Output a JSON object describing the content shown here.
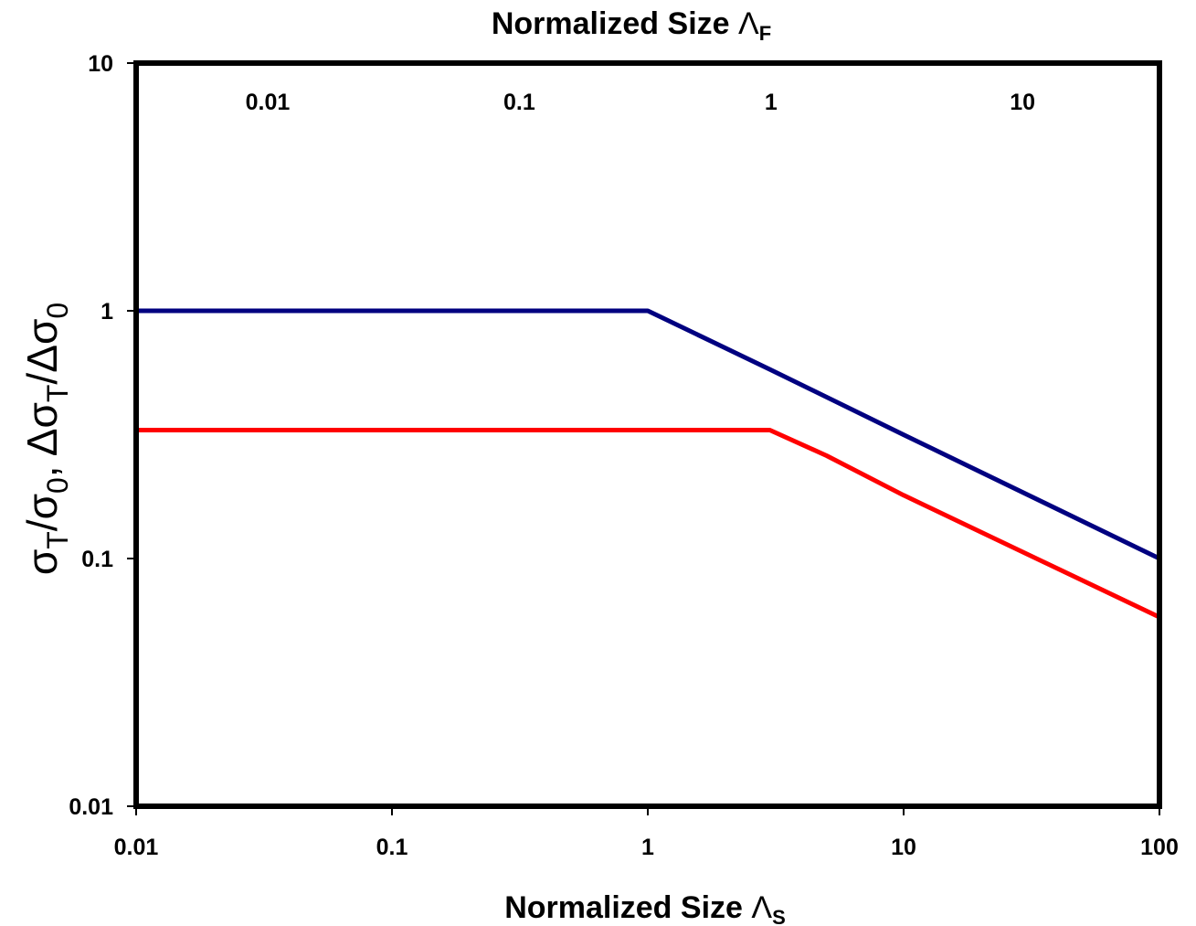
{
  "chart_data": {
    "type": "line",
    "x_scale": "log",
    "y_scale": "log",
    "xlim": [
      0.01,
      100
    ],
    "ylim": [
      0.01,
      10
    ],
    "top_xlim": [
      0.003,
      35
    ],
    "bottom_xlabel": {
      "text": "Normalized Size ",
      "symbol": "Λ",
      "sub": "S"
    },
    "top_xlabel": {
      "text": "Normalized Size ",
      "symbol": "Λ",
      "sub": "F"
    },
    "ylabel": [
      {
        "t": "σ"
      },
      {
        "t": "T",
        "sub": true
      },
      {
        "t": "/σ"
      },
      {
        "t": "0",
        "sub": true
      },
      {
        "t": ",  Δσ"
      },
      {
        "t": "T",
        "sub": true
      },
      {
        "t": "/Δσ"
      },
      {
        "t": "0",
        "sub": true
      }
    ],
    "bottom_ticks": [
      {
        "value": 0.01,
        "label": "0.01"
      },
      {
        "value": 0.1,
        "label": "0.1"
      },
      {
        "value": 1,
        "label": "1"
      },
      {
        "value": 10,
        "label": "10"
      },
      {
        "value": 100,
        "label": "100"
      }
    ],
    "top_ticks": [
      {
        "value": 0.01,
        "label": "0.01"
      },
      {
        "value": 0.1,
        "label": "0.1"
      },
      {
        "value": 1,
        "label": "1"
      },
      {
        "value": 10,
        "label": "10"
      }
    ],
    "y_ticks": [
      {
        "value": 10,
        "label": "10"
      },
      {
        "value": 1,
        "label": "1"
      },
      {
        "value": 0.1,
        "label": "0.1"
      },
      {
        "value": 0.01,
        "label": "0.01"
      }
    ],
    "grid": false,
    "series": [
      {
        "color": "#000080",
        "x": [
          0.01,
          1,
          3,
          10,
          100
        ],
        "y": [
          1,
          1,
          0.58,
          0.316,
          0.1
        ]
      },
      {
        "color": "#ff0000",
        "x": [
          0.01,
          3,
          5,
          10,
          100
        ],
        "y": [
          0.33,
          0.33,
          0.26,
          0.18,
          0.058
        ]
      }
    ]
  }
}
